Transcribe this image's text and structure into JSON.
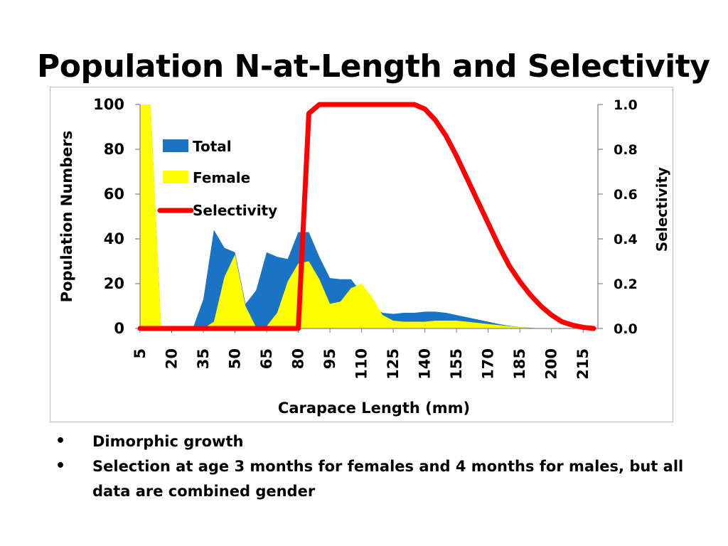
{
  "slide": {
    "title": "Population N-at-Length and Selectivity",
    "bullets": [
      "Dimorphic growth",
      "Selection at age 3 months for females and 4 months for males, but all data are combined gender"
    ]
  },
  "colors": {
    "total": "#1a73c5",
    "female": "#ffff00",
    "selectivity": "#ff0000",
    "axis": "#808080",
    "frame": "#b8b8b8"
  },
  "chart_data": {
    "type": "area",
    "title": "",
    "xlabel": "Carapace Length (mm)",
    "ylabel": "Population Numbers",
    "y2label": "Selectivity",
    "x": [
      5,
      10,
      15,
      20,
      25,
      30,
      35,
      40,
      45,
      50,
      55,
      60,
      65,
      70,
      75,
      80,
      85,
      90,
      95,
      100,
      105,
      110,
      115,
      120,
      125,
      130,
      135,
      140,
      145,
      150,
      155,
      160,
      165,
      170,
      175,
      180,
      185,
      190,
      195,
      200,
      205,
      210,
      215,
      220
    ],
    "x_tick_labels": [
      "5",
      "20",
      "35",
      "50",
      "65",
      "80",
      "95",
      "110",
      "125",
      "140",
      "155",
      "170",
      "185",
      "200",
      "215"
    ],
    "ylim": [
      0,
      100
    ],
    "y_ticks": [
      "0",
      "20",
      "40",
      "60",
      "80",
      "100"
    ],
    "y2lim": [
      0,
      1
    ],
    "y2_ticks": [
      "0.0",
      "0.2",
      "0.4",
      "0.6",
      "0.8",
      "1.0"
    ],
    "grid": false,
    "legend_position": "top-left",
    "series": [
      {
        "name": "Total",
        "axis": "left",
        "values": [
          100,
          100,
          0,
          0,
          0,
          0,
          13,
          44,
          36,
          34,
          11,
          17,
          34,
          32,
          31,
          43,
          43,
          32,
          22.5,
          22,
          22,
          16,
          10,
          7,
          6.5,
          7,
          7,
          7.5,
          7.5,
          7,
          6,
          5,
          4,
          3,
          2,
          1.2,
          0.6,
          0.3,
          0,
          0,
          0,
          0,
          0,
          0
        ]
      },
      {
        "name": "Female",
        "axis": "left",
        "values": [
          100,
          100,
          0,
          0,
          0,
          0,
          0,
          3,
          23,
          33,
          10,
          0.5,
          1,
          7,
          21,
          29,
          30,
          22,
          11,
          12,
          18,
          20,
          14,
          6,
          3.5,
          3,
          3,
          3,
          3.5,
          3.5,
          3.5,
          3,
          2.5,
          2,
          1.5,
          1,
          0.5,
          0.2,
          0,
          0,
          0,
          0,
          0,
          0
        ]
      },
      {
        "name": "Selectivity",
        "axis": "right",
        "values": [
          0,
          0,
          0,
          0,
          0,
          0,
          0,
          0,
          0,
          0,
          0,
          0,
          0,
          0,
          0,
          0,
          0.96,
          1,
          1,
          1,
          1,
          1,
          1,
          1,
          1,
          1,
          1,
          0.98,
          0.93,
          0.86,
          0.77,
          0.67,
          0.57,
          0.47,
          0.37,
          0.28,
          0.21,
          0.15,
          0.1,
          0.06,
          0.03,
          0.015,
          0.005,
          0
        ]
      }
    ]
  }
}
